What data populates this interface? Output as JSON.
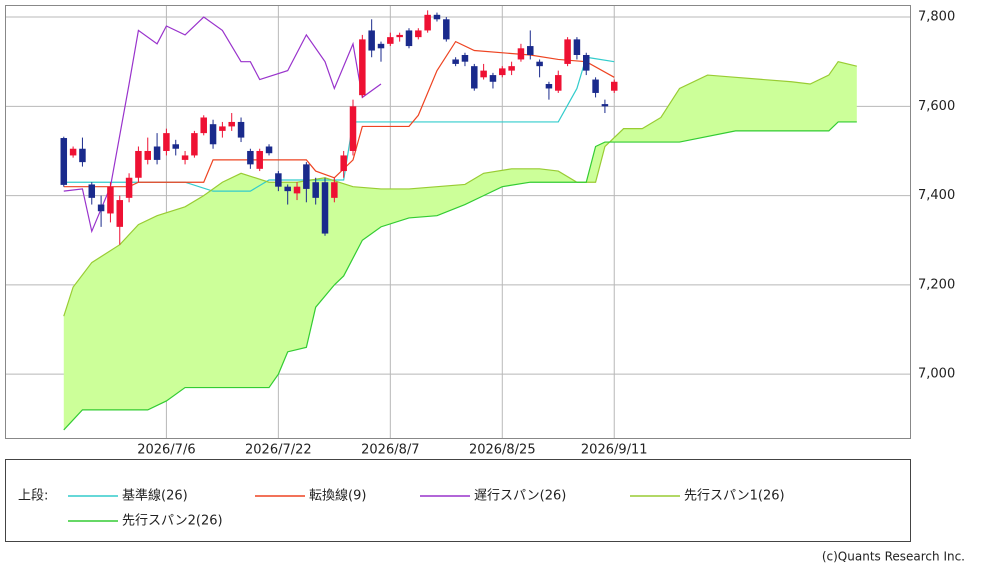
{
  "chart_data": {
    "type": "candlestick",
    "xlim": [
      -6.3,
      90.7
    ],
    "ylim": [
      6857,
      7827
    ],
    "xticks": [
      {
        "value": 11,
        "label": "2026/7/6"
      },
      {
        "value": 23,
        "label": "2026/7/22"
      },
      {
        "value": 35,
        "label": "2026/8/7"
      },
      {
        "value": 47,
        "label": "2026/8/25"
      },
      {
        "value": 59,
        "label": "2026/9/11"
      }
    ],
    "yticks": [
      {
        "value": 7000,
        "label": "7,000"
      },
      {
        "value": 7200,
        "label": "7,200"
      },
      {
        "value": 7400,
        "label": "7,400"
      },
      {
        "value": 7600,
        "label": "7,600"
      },
      {
        "value": 7800,
        "label": "7,800"
      }
    ],
    "grid": true,
    "candles": {
      "up_color": "#ee1133",
      "down_color": "#1a2a8c",
      "x": [
        0,
        1,
        2,
        3,
        4,
        5,
        6,
        7,
        8,
        9,
        10,
        11,
        12,
        13,
        14,
        15,
        16,
        17,
        18,
        19,
        20,
        21,
        22,
        23,
        24,
        25,
        26,
        27,
        28,
        29,
        30,
        31,
        32,
        33,
        34,
        35,
        36,
        37,
        38,
        39,
        40,
        41,
        42,
        43,
        44,
        45,
        46,
        47,
        48,
        49,
        50,
        51,
        52,
        53,
        54,
        55,
        56,
        57,
        58,
        59
      ],
      "open": [
        7529,
        7490,
        7505,
        7425,
        7380,
        7360,
        7330,
        7395,
        7440,
        7480,
        7510,
        7500,
        7515,
        7480,
        7490,
        7540,
        7560,
        7545,
        7555,
        7565,
        7500,
        7460,
        7510,
        7450,
        7420,
        7405,
        7470,
        7430,
        7430,
        7395,
        7455,
        7500,
        7625,
        7770,
        7740,
        7740,
        7755,
        7770,
        7755,
        7770,
        7805,
        7795,
        7705,
        7715,
        7690,
        7665,
        7670,
        7670,
        7680,
        7705,
        7735,
        7700,
        7650,
        7635,
        7695,
        7750,
        7715,
        7660,
        7605,
        7635
      ],
      "high": [
        7532,
        7510,
        7530,
        7430,
        7400,
        7430,
        7400,
        7450,
        7510,
        7530,
        7540,
        7550,
        7525,
        7500,
        7545,
        7580,
        7570,
        7565,
        7585,
        7575,
        7505,
        7505,
        7515,
        7455,
        7425,
        7430,
        7475,
        7440,
        7440,
        7440,
        7500,
        7615,
        7760,
        7795,
        7745,
        7765,
        7765,
        7775,
        7775,
        7815,
        7810,
        7800,
        7710,
        7720,
        7695,
        7695,
        7675,
        7690,
        7700,
        7740,
        7770,
        7705,
        7655,
        7680,
        7755,
        7755,
        7720,
        7665,
        7615,
        7660
      ],
      "low": [
        7420,
        7485,
        7465,
        7380,
        7330,
        7340,
        7290,
        7385,
        7430,
        7470,
        7470,
        7490,
        7490,
        7470,
        7485,
        7535,
        7505,
        7530,
        7545,
        7520,
        7460,
        7455,
        7490,
        7410,
        7380,
        7390,
        7385,
        7380,
        7310,
        7385,
        7440,
        7490,
        7620,
        7710,
        7700,
        7735,
        7745,
        7730,
        7750,
        7765,
        7790,
        7745,
        7690,
        7690,
        7635,
        7660,
        7640,
        7665,
        7670,
        7700,
        7705,
        7665,
        7615,
        7630,
        7690,
        7705,
        7670,
        7620,
        7585,
        7630
      ],
      "close": [
        7424,
        7505,
        7475,
        7395,
        7365,
        7420,
        7390,
        7440,
        7500,
        7500,
        7480,
        7540,
        7505,
        7490,
        7540,
        7575,
        7515,
        7555,
        7565,
        7530,
        7470,
        7500,
        7495,
        7420,
        7410,
        7420,
        7415,
        7395,
        7315,
        7430,
        7490,
        7600,
        7750,
        7725,
        7730,
        7755,
        7760,
        7735,
        7770,
        7805,
        7795,
        7750,
        7695,
        7700,
        7640,
        7680,
        7655,
        7685,
        7690,
        7730,
        7715,
        7690,
        7640,
        7670,
        7750,
        7715,
        7680,
        7630,
        7600,
        7655
      ]
    },
    "cloud_color": "#ccff99",
    "series": [
      {
        "name": "基準線(26)",
        "color": "#33cccc",
        "x": [
          0,
          13,
          16,
          20,
          22,
          30,
          31,
          53,
          55,
          56,
          59
        ],
        "values": [
          7430,
          7430,
          7410,
          7410,
          7435,
          7435,
          7565,
          7565,
          7640,
          7710,
          7700
        ]
      },
      {
        "name": "転換線(9)",
        "color": "#ee4422",
        "x": [
          0,
          7,
          8,
          15,
          16,
          26,
          27,
          29,
          31,
          32,
          37,
          38,
          40,
          42,
          44,
          50,
          53,
          56,
          59
        ],
        "values": [
          7420,
          7420,
          7430,
          7430,
          7480,
          7480,
          7455,
          7440,
          7480,
          7555,
          7555,
          7580,
          7680,
          7745,
          7725,
          7715,
          7705,
          7700,
          7665
        ]
      },
      {
        "name": "遅行スパン(26)",
        "color": "#9933cc",
        "x": [
          0,
          2,
          3,
          5,
          7,
          8,
          10,
          11,
          13,
          15,
          17,
          19,
          20,
          21,
          24,
          26,
          28,
          29,
          31,
          32,
          34
        ],
        "values": [
          7410,
          7415,
          7320,
          7420,
          7650,
          7770,
          7740,
          7780,
          7760,
          7800,
          7770,
          7700,
          7700,
          7660,
          7680,
          7760,
          7700,
          7640,
          7740,
          7620,
          7650
        ]
      },
      {
        "name": "先行スパン1(26)",
        "color": "#99cc33",
        "x": [
          0,
          1,
          3,
          6,
          8,
          10,
          13,
          15,
          17,
          19,
          22,
          25,
          28,
          31,
          34,
          37,
          40,
          43,
          45,
          48,
          51,
          53,
          55,
          56,
          57,
          58,
          60,
          62,
          64,
          66,
          69,
          72,
          75,
          78,
          80,
          82,
          83,
          85
        ],
        "values": [
          7130,
          7195,
          7250,
          7290,
          7335,
          7355,
          7375,
          7400,
          7430,
          7450,
          7430,
          7430,
          7440,
          7420,
          7415,
          7415,
          7420,
          7425,
          7450,
          7460,
          7460,
          7455,
          7430,
          7430,
          7430,
          7510,
          7550,
          7550,
          7575,
          7640,
          7670,
          7665,
          7660,
          7655,
          7650,
          7670,
          7700,
          7690
        ]
      },
      {
        "name": "先行スパン2(26)",
        "color": "#33cc33",
        "x": [
          0,
          2,
          9,
          11,
          13,
          22,
          23,
          24,
          26,
          27,
          29,
          30,
          32,
          34,
          37,
          40,
          43,
          45,
          47,
          50,
          56,
          57,
          58,
          66,
          72,
          82,
          83,
          85
        ],
        "values": [
          6875,
          6920,
          6920,
          6940,
          6970,
          6970,
          7000,
          7050,
          7060,
          7150,
          7200,
          7220,
          7300,
          7330,
          7350,
          7355,
          7380,
          7400,
          7420,
          7430,
          7430,
          7510,
          7520,
          7520,
          7545,
          7545,
          7565,
          7565
        ]
      }
    ],
    "legend_title": "上段:",
    "credit": "(c)Quants Research Inc."
  }
}
